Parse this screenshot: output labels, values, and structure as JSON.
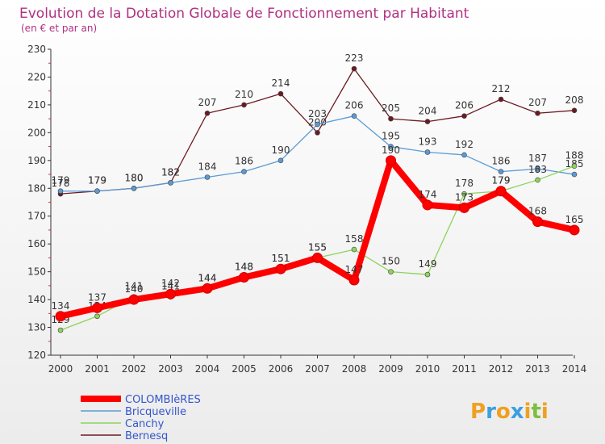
{
  "chart_data": {
    "type": "line",
    "title": "Evolution de la Dotation Globale de Fonctionnement par Habitant",
    "subtitle": "(en € et par an)",
    "xlabel": "",
    "ylabel": "",
    "ylim": [
      120,
      230
    ],
    "yticks": [
      120,
      130,
      140,
      150,
      160,
      170,
      180,
      190,
      200,
      210,
      220,
      230
    ],
    "x": [
      "2000",
      "2001",
      "2002",
      "2003",
      "2004",
      "2005",
      "2006",
      "2007",
      "2008",
      "2009",
      "2010",
      "2011",
      "2012",
      "2013",
      "2014"
    ],
    "grid": false,
    "legend_position": "bottom-left",
    "series": [
      {
        "name": "Bernesq",
        "color": "#6b1a22",
        "values": [
          178,
          179,
          180,
          182,
          207,
          210,
          214,
          200,
          223,
          205,
          204,
          206,
          212,
          207,
          208
        ]
      },
      {
        "name": "Bricqueville",
        "color": "#5b9bd5",
        "values": [
          179,
          179,
          180,
          182,
          184,
          186,
          190,
          203,
          206,
          195,
          193,
          192,
          186,
          187,
          185
        ]
      },
      {
        "name": "Canchy",
        "color": "#8fd35a",
        "values": [
          129,
          134,
          141,
          141,
          144,
          148,
          151,
          155,
          158,
          150,
          149,
          178,
          179,
          183,
          188
        ]
      },
      {
        "name": "COLOMBIèRES",
        "color": "#ff0000",
        "values": [
          134,
          137,
          140,
          142,
          144,
          148,
          151,
          155,
          147,
          190,
          174,
          173,
          179,
          168,
          165
        ]
      }
    ]
  },
  "brand": {
    "text": "Proxiti",
    "letters": [
      "P",
      "r",
      "o",
      "x",
      "i",
      "t",
      "i"
    ]
  }
}
